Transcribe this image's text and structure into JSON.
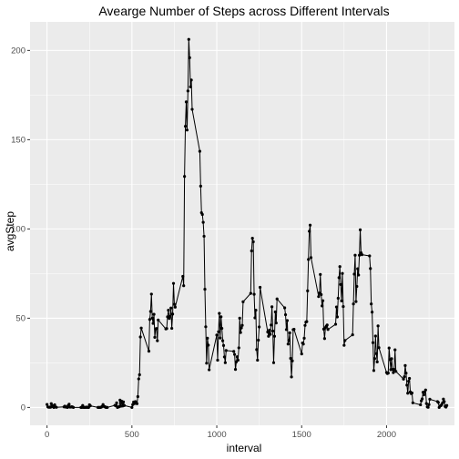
{
  "chart_data": {
    "type": "line",
    "title": "Avearge Number of Steps across Different Intervals",
    "xlabel": "interval",
    "ylabel": "avgStep",
    "xlim": [
      -100,
      2400
    ],
    "ylim": [
      -10,
      216
    ],
    "xticks": [
      0,
      500,
      1000,
      1500,
      2000
    ],
    "xtick_labels": [
      "0",
      "500",
      "1000",
      "1500",
      "2000"
    ],
    "yticks": [
      0,
      50,
      100,
      150,
      200
    ],
    "ytick_labels": [
      "0",
      "50",
      "100",
      "150",
      "200"
    ],
    "grid": true,
    "legend": "none",
    "colors": {
      "panel": "#ebebeb",
      "grid_major": "#ffffff",
      "line": "#000000",
      "point": "#000000"
    },
    "series": [
      {
        "points": [
          [
            0,
            1.7
          ],
          [
            5,
            0.3
          ],
          [
            10,
            0.1
          ],
          [
            15,
            0.2
          ],
          [
            20,
            0.1
          ],
          [
            25,
            2.1
          ],
          [
            30,
            0.5
          ],
          [
            35,
            0.9
          ],
          [
            40,
            0.0
          ],
          [
            45,
            1.5
          ],
          [
            50,
            0.3
          ],
          [
            55,
            0.1
          ],
          [
            100,
            0.3
          ],
          [
            105,
            0.7
          ],
          [
            110,
            0.2
          ],
          [
            115,
            0.3
          ],
          [
            120,
            0.0
          ],
          [
            125,
            1.1
          ],
          [
            130,
            1.8
          ],
          [
            135,
            0.2
          ],
          [
            140,
            0.2
          ],
          [
            145,
            0.4
          ],
          [
            150,
            0.3
          ],
          [
            155,
            0.0
          ],
          [
            200,
            0.0
          ],
          [
            205,
            0.0
          ],
          [
            210,
            1.1
          ],
          [
            215,
            0.0
          ],
          [
            220,
            0.0
          ],
          [
            225,
            0.1
          ],
          [
            230,
            0.0
          ],
          [
            235,
            0.2
          ],
          [
            240,
            0.0
          ],
          [
            245,
            0.0
          ],
          [
            250,
            1.5
          ],
          [
            255,
            0.9
          ],
          [
            300,
            0.0
          ],
          [
            305,
            0.0
          ],
          [
            310,
            0.0
          ],
          [
            315,
            0.0
          ],
          [
            320,
            0.2
          ],
          [
            325,
            0.6
          ],
          [
            330,
            1.6
          ],
          [
            335,
            0.6
          ],
          [
            340,
            0.5
          ],
          [
            345,
            0.1
          ],
          [
            350,
            0.0
          ],
          [
            355,
            0.0
          ],
          [
            400,
            1.2
          ],
          [
            405,
            0.9
          ],
          [
            410,
            2.6
          ],
          [
            415,
            0.0
          ],
          [
            420,
            0.3
          ],
          [
            425,
            0.4
          ],
          [
            430,
            4.1
          ],
          [
            435,
            0.7
          ],
          [
            440,
            3.5
          ],
          [
            445,
            0.8
          ],
          [
            450,
            3.1
          ],
          [
            455,
            1.1
          ],
          [
            500,
            0.0
          ],
          [
            505,
            1.6
          ],
          [
            510,
            3.0
          ],
          [
            515,
            2.2
          ],
          [
            520,
            3.3
          ],
          [
            525,
            3.0
          ],
          [
            530,
            2.1
          ],
          [
            535,
            6.1
          ],
          [
            540,
            16.0
          ],
          [
            545,
            18.3
          ],
          [
            550,
            39.5
          ],
          [
            555,
            44.5
          ],
          [
            600,
            31.5
          ],
          [
            605,
            49.3
          ],
          [
            610,
            53.8
          ],
          [
            615,
            63.5
          ],
          [
            620,
            50.0
          ],
          [
            625,
            47.1
          ],
          [
            630,
            52.2
          ],
          [
            635,
            39.3
          ],
          [
            640,
            44.0
          ],
          [
            645,
            44.2
          ],
          [
            650,
            37.4
          ],
          [
            655,
            49.0
          ],
          [
            700,
            44.0
          ],
          [
            705,
            44.2
          ],
          [
            710,
            50.8
          ],
          [
            715,
            54.5
          ],
          [
            720,
            49.9
          ],
          [
            725,
            51.0
          ],
          [
            730,
            55.7
          ],
          [
            735,
            44.3
          ],
          [
            740,
            52.3
          ],
          [
            745,
            69.5
          ],
          [
            750,
            57.8
          ],
          [
            755,
            56.2
          ],
          [
            800,
            73.4
          ],
          [
            805,
            68.2
          ],
          [
            810,
            129.4
          ],
          [
            815,
            157.5
          ],
          [
            820,
            171.2
          ],
          [
            825,
            155.4
          ],
          [
            830,
            177.3
          ],
          [
            835,
            206.2
          ],
          [
            840,
            195.9
          ],
          [
            845,
            179.6
          ],
          [
            850,
            183.4
          ],
          [
            855,
            167.0
          ],
          [
            900,
            143.5
          ],
          [
            905,
            124.0
          ],
          [
            910,
            109.1
          ],
          [
            915,
            108.1
          ],
          [
            920,
            103.7
          ],
          [
            925,
            95.9
          ],
          [
            930,
            66.2
          ],
          [
            935,
            45.2
          ],
          [
            940,
            24.8
          ],
          [
            945,
            38.8
          ],
          [
            950,
            34.9
          ],
          [
            955,
            21.1
          ],
          [
            1000,
            40.6
          ],
          [
            1005,
            26.5
          ],
          [
            1010,
            42.4
          ],
          [
            1015,
            52.7
          ],
          [
            1020,
            38.9
          ],
          [
            1025,
            50.8
          ],
          [
            1030,
            44.3
          ],
          [
            1035,
            37.4
          ],
          [
            1040,
            34.7
          ],
          [
            1045,
            28.3
          ],
          [
            1050,
            25.1
          ],
          [
            1055,
            31.9
          ],
          [
            1100,
            31.4
          ],
          [
            1105,
            29.7
          ],
          [
            1110,
            21.3
          ],
          [
            1115,
            25.5
          ],
          [
            1120,
            28.4
          ],
          [
            1125,
            26.5
          ],
          [
            1130,
            33.4
          ],
          [
            1135,
            50.0
          ],
          [
            1140,
            42.0
          ],
          [
            1145,
            44.6
          ],
          [
            1150,
            46.0
          ],
          [
            1155,
            59.2
          ],
          [
            1200,
            63.9
          ],
          [
            1205,
            87.7
          ],
          [
            1210,
            94.8
          ],
          [
            1215,
            92.8
          ],
          [
            1220,
            63.4
          ],
          [
            1225,
            50.2
          ],
          [
            1230,
            54.5
          ],
          [
            1235,
            32.4
          ],
          [
            1240,
            26.5
          ],
          [
            1245,
            37.7
          ],
          [
            1250,
            45.1
          ],
          [
            1255,
            67.3
          ],
          [
            1300,
            42.3
          ],
          [
            1305,
            39.9
          ],
          [
            1310,
            43.3
          ],
          [
            1315,
            40.98
          ],
          [
            1320,
            46.2
          ],
          [
            1325,
            56.4
          ],
          [
            1330,
            42.8
          ],
          [
            1335,
            25.1
          ],
          [
            1340,
            39.9
          ],
          [
            1345,
            53.5
          ],
          [
            1350,
            47.3
          ],
          [
            1355,
            60.8
          ],
          [
            1400,
            55.8
          ],
          [
            1405,
            51.96
          ],
          [
            1410,
            43.6
          ],
          [
            1415,
            48.7
          ],
          [
            1420,
            35.5
          ],
          [
            1425,
            37.5
          ],
          [
            1430,
            41.8
          ],
          [
            1435,
            27.5
          ],
          [
            1440,
            17.1
          ],
          [
            1445,
            26.1
          ],
          [
            1450,
            43.6
          ],
          [
            1455,
            43.8
          ],
          [
            1500,
            30.0
          ],
          [
            1505,
            36.1
          ],
          [
            1510,
            35.5
          ],
          [
            1515,
            38.8
          ],
          [
            1520,
            45.96
          ],
          [
            1525,
            47.8
          ],
          [
            1530,
            48.1
          ],
          [
            1535,
            65.3
          ],
          [
            1540,
            82.9
          ],
          [
            1545,
            98.7
          ],
          [
            1550,
            102.1
          ],
          [
            1555,
            83.96
          ],
          [
            1600,
            62.1
          ],
          [
            1605,
            64.1
          ],
          [
            1610,
            74.5
          ],
          [
            1615,
            63.2
          ],
          [
            1620,
            56.9
          ],
          [
            1625,
            59.8
          ],
          [
            1630,
            43.9
          ],
          [
            1635,
            38.6
          ],
          [
            1640,
            44.7
          ],
          [
            1645,
            45.5
          ],
          [
            1650,
            46.2
          ],
          [
            1655,
            43.7
          ],
          [
            1700,
            46.6
          ],
          [
            1705,
            56.3
          ],
          [
            1710,
            50.7
          ],
          [
            1715,
            61.2
          ],
          [
            1720,
            72.7
          ],
          [
            1725,
            78.9
          ],
          [
            1730,
            68.9
          ],
          [
            1735,
            59.7
          ],
          [
            1740,
            75.1
          ],
          [
            1745,
            56.5
          ],
          [
            1750,
            34.8
          ],
          [
            1755,
            37.5
          ],
          [
            1800,
            40.7
          ],
          [
            1805,
            58.0
          ],
          [
            1810,
            74.7
          ],
          [
            1815,
            85.3
          ],
          [
            1820,
            59.3
          ],
          [
            1825,
            67.8
          ],
          [
            1830,
            77.7
          ],
          [
            1835,
            74.2
          ],
          [
            1840,
            85.3
          ],
          [
            1845,
            99.5
          ],
          [
            1850,
            86.6
          ],
          [
            1855,
            85.6
          ],
          [
            1900,
            84.9
          ],
          [
            1905,
            77.8
          ],
          [
            1910,
            58.0
          ],
          [
            1915,
            53.4
          ],
          [
            1920,
            36.3
          ],
          [
            1925,
            20.7
          ],
          [
            1930,
            27.4
          ],
          [
            1935,
            40.0
          ],
          [
            1940,
            30.2
          ],
          [
            1945,
            25.5
          ],
          [
            1950,
            45.7
          ],
          [
            1955,
            33.5
          ],
          [
            2000,
            19.6
          ],
          [
            2005,
            19.0
          ],
          [
            2010,
            19.3
          ],
          [
            2015,
            33.3
          ],
          [
            2020,
            26.8
          ],
          [
            2025,
            21.2
          ],
          [
            2030,
            27.3
          ],
          [
            2035,
            21.3
          ],
          [
            2040,
            19.5
          ],
          [
            2045,
            21.3
          ],
          [
            2050,
            32.3
          ],
          [
            2055,
            20.2
          ],
          [
            2100,
            15.9
          ],
          [
            2105,
            17.2
          ],
          [
            2110,
            23.5
          ],
          [
            2115,
            19.2
          ],
          [
            2120,
            12.5
          ],
          [
            2125,
            8.0
          ],
          [
            2130,
            14.7
          ],
          [
            2135,
            16.3
          ],
          [
            2140,
            8.7
          ],
          [
            2145,
            7.8
          ],
          [
            2150,
            8.1
          ],
          [
            2155,
            2.6
          ],
          [
            2200,
            1.5
          ],
          [
            2205,
            3.7
          ],
          [
            2210,
            4.8
          ],
          [
            2215,
            8.5
          ],
          [
            2220,
            7.1
          ],
          [
            2225,
            8.7
          ],
          [
            2230,
            9.8
          ],
          [
            2235,
            2.2
          ],
          [
            2240,
            0.3
          ],
          [
            2245,
            0.1
          ],
          [
            2250,
            1.6
          ],
          [
            2255,
            4.6
          ],
          [
            2300,
            3.3
          ],
          [
            2305,
            2.8
          ],
          [
            2310,
            0.0
          ],
          [
            2315,
            0.8
          ],
          [
            2320,
            1.0
          ],
          [
            2325,
            1.6
          ],
          [
            2330,
            2.6
          ],
          [
            2335,
            4.7
          ],
          [
            2340,
            3.3
          ],
          [
            2345,
            0.6
          ],
          [
            2350,
            0.2
          ],
          [
            2355,
            1.1
          ]
        ]
      }
    ]
  }
}
